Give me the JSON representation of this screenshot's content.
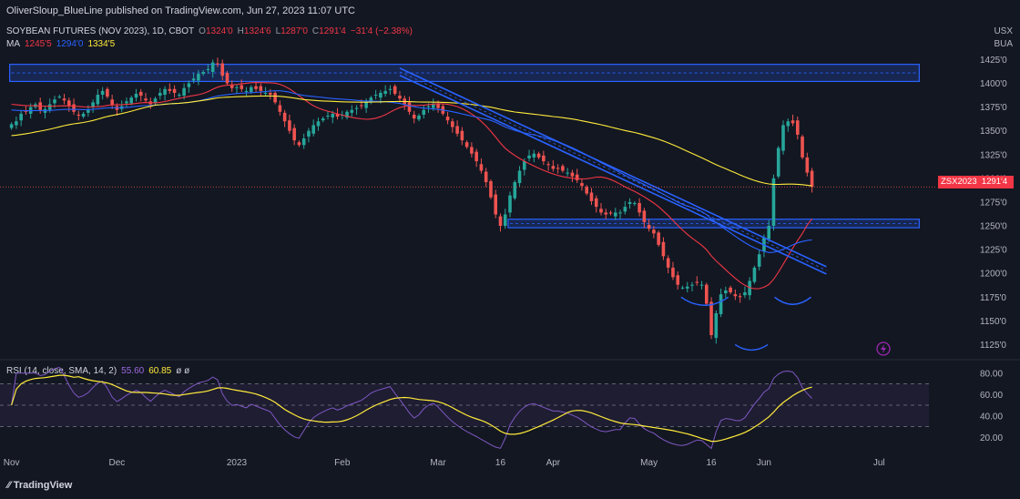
{
  "header": {
    "publisher": "OliverSloup_BlueLine published on TradingView.com, Jun 27, 2023 11:07 UTC"
  },
  "legend": {
    "symbol": "SOYBEAN FUTURES (NOV 2023), 1D, CBOT",
    "o_label": "O",
    "o_value": "1324'0",
    "h_label": "H",
    "h_value": "1324'6",
    "l_label": "L",
    "l_value": "1287'0",
    "c_label": "C",
    "c_value": "1291'4",
    "change": "−31'4 (−2.38%)",
    "ma_label": "MA",
    "ma_values": [
      "1245'5",
      "1294'0",
      "1334'5"
    ]
  },
  "currency": [
    "USX",
    "BUA"
  ],
  "price_tag": {
    "symbol": "ZSX2023",
    "value": "1291'4"
  },
  "rsi_legend": {
    "label": "RSI (14, close, SMA, 14, 2)",
    "rsi": "55.60",
    "sma": "60.85",
    "extra": "ø ø"
  },
  "brand": "TradingView",
  "colors": {
    "up": "#26a69a",
    "down": "#ef5350",
    "ma1": "#f23645",
    "ma2": "#2962ff",
    "ma3": "#ffeb3b",
    "channel": "#2962ff",
    "rsi": "#7e57c2",
    "rsi_sma": "#ffeb3b"
  },
  "chart_data": {
    "type": "candlestick",
    "title": "SOYBEAN FUTURES (NOV 2023), 1D, CBOT",
    "price_axis": [
      "1425'0",
      "1400'0",
      "1375'0",
      "1350'0",
      "1325'0",
      "1300'0",
      "1275'0",
      "1250'0",
      "1225'0",
      "1200'0",
      "1175'0",
      "1150'0",
      "1125'0"
    ],
    "price_axis_values": [
      1425,
      1400,
      1375,
      1350,
      1325,
      1300,
      1275,
      1250,
      1225,
      1200,
      1175,
      1150,
      1125
    ],
    "ylim": [
      1112,
      1435
    ],
    "time_axis": [
      "Nov",
      "Dec",
      "2023",
      "Feb",
      "Mar",
      "16",
      "Apr",
      "May",
      "16",
      "Jun",
      "Jul"
    ],
    "time_axis_index": [
      0,
      22,
      47,
      69,
      89,
      102,
      113,
      133,
      146,
      157,
      181
    ],
    "x_total": 190,
    "closes": [
      1357,
      1360,
      1368,
      1370,
      1375,
      1378,
      1372,
      1373,
      1378,
      1383,
      1386,
      1382,
      1376,
      1370,
      1366,
      1368,
      1372,
      1380,
      1388,
      1392,
      1386,
      1377,
      1372,
      1376,
      1381,
      1385,
      1389,
      1387,
      1382,
      1378,
      1384,
      1390,
      1394,
      1392,
      1390,
      1388,
      1395,
      1400,
      1405,
      1410,
      1412,
      1415,
      1422,
      1420,
      1408,
      1400,
      1395,
      1396,
      1394,
      1392,
      1396,
      1394,
      1392,
      1390,
      1388,
      1380,
      1370,
      1360,
      1350,
      1340,
      1335,
      1342,
      1350,
      1356,
      1360,
      1363,
      1366,
      1368,
      1365,
      1367,
      1370,
      1372,
      1374,
      1376,
      1380,
      1385,
      1388,
      1390,
      1392,
      1394,
      1389,
      1384,
      1378,
      1370,
      1363,
      1366,
      1372,
      1376,
      1378,
      1374,
      1368,
      1361,
      1354,
      1347,
      1340,
      1333,
      1326,
      1318,
      1308,
      1296,
      1280,
      1262,
      1250,
      1262,
      1282,
      1296,
      1308,
      1318,
      1324,
      1326,
      1322,
      1318,
      1314,
      1310,
      1310,
      1308,
      1306,
      1302,
      1298,
      1292,
      1284,
      1276,
      1270,
      1264,
      1262,
      1263,
      1264,
      1264,
      1270,
      1275,
      1274,
      1264,
      1254,
      1247,
      1242,
      1230,
      1218,
      1206,
      1196,
      1188,
      1185,
      1186,
      1188,
      1190,
      1188,
      1168,
      1135,
      1158,
      1178,
      1182,
      1180,
      1176,
      1175,
      1180,
      1192,
      1206,
      1220,
      1238,
      1250,
      1300,
      1332,
      1356,
      1360,
      1358,
      1346,
      1322,
      1306,
      1291
    ],
    "ma_series": [
      {
        "name": "MA",
        "value": "1245'5",
        "color": "#f23645"
      },
      {
        "name": "MA",
        "value": "1294'0",
        "color": "#2962ff"
      },
      {
        "name": "MA",
        "value": "1334'5",
        "color": "#ffeb3b"
      }
    ],
    "zones": [
      {
        "from": 1402,
        "to": 1420,
        "x_from": 0,
        "x_to": 190
      },
      {
        "from": 1248,
        "to": 1257,
        "x_from": 104,
        "x_to": 190
      }
    ],
    "channel": {
      "x1": 81,
      "y1": 1416,
      "x2": 170,
      "y2": 1207,
      "width": 8
    },
    "rsi": {
      "axis": [
        "80.00",
        "60.00",
        "40.00",
        "20.00"
      ],
      "axis_values": [
        80,
        60,
        40,
        20
      ],
      "bands": [
        70,
        50,
        30
      ],
      "ylim": [
        10,
        90
      ]
    }
  }
}
